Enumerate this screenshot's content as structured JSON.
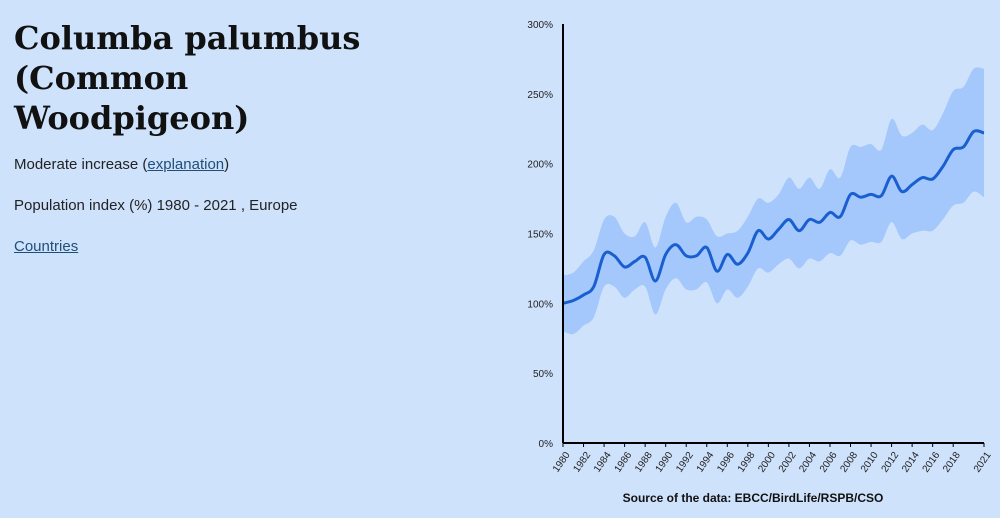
{
  "page": {
    "title_lines": [
      "Columba palumbus",
      "(Common",
      "Woodpigeon)"
    ],
    "trend_prefix": "Moderate increase (",
    "trend_link": "explanation",
    "trend_suffix": ")",
    "subtitle": "Population index (%) 1980 - 2021 , Europe",
    "countries_link": "Countries",
    "source": "Source of the data: EBCC/BirdLife/RSPB/CSO"
  },
  "chart_data": {
    "type": "line",
    "title": "",
    "xlabel": "",
    "ylabel": "",
    "x": [
      1980,
      1981,
      1982,
      1983,
      1984,
      1985,
      1986,
      1987,
      1988,
      1989,
      1990,
      1991,
      1992,
      1993,
      1994,
      1995,
      1996,
      1997,
      1998,
      1999,
      2000,
      2001,
      2002,
      2003,
      2004,
      2005,
      2006,
      2007,
      2008,
      2009,
      2010,
      2011,
      2012,
      2013,
      2014,
      2015,
      2016,
      2017,
      2018,
      2019,
      2020,
      2021
    ],
    "xticks": [
      1980,
      1982,
      1984,
      1986,
      1988,
      1990,
      1992,
      1994,
      1996,
      1998,
      2000,
      2002,
      2004,
      2006,
      2008,
      2010,
      2012,
      2014,
      2016,
      2018,
      2021
    ],
    "yticks": [
      0,
      50,
      100,
      150,
      200,
      250,
      300
    ],
    "ytick_suffix": "%",
    "ylim": [
      0,
      300
    ],
    "series": [
      {
        "values": [
          100,
          102,
          106,
          112,
          135,
          134,
          126,
          130,
          133,
          116,
          135,
          142,
          134,
          134,
          140,
          123,
          135,
          128,
          136,
          152,
          146,
          153,
          160,
          152,
          160,
          158,
          165,
          162,
          178,
          176,
          178,
          177,
          191,
          180,
          185,
          190,
          189,
          198,
          210,
          212,
          223,
          222
        ]
      }
    ],
    "band_upper": [
      120,
      122,
      130,
      138,
      160,
      162,
      150,
      148,
      158,
      140,
      162,
      172,
      158,
      162,
      160,
      148,
      150,
      152,
      162,
      175,
      172,
      178,
      190,
      182,
      190,
      182,
      196,
      190,
      212,
      212,
      214,
      210,
      232,
      220,
      222,
      228,
      224,
      236,
      252,
      255,
      268,
      268
    ],
    "band_lower": [
      80,
      78,
      84,
      90,
      112,
      112,
      104,
      110,
      112,
      92,
      110,
      118,
      110,
      110,
      115,
      100,
      110,
      104,
      112,
      125,
      122,
      128,
      132,
      125,
      132,
      130,
      136,
      134,
      145,
      142,
      144,
      144,
      158,
      146,
      150,
      152,
      152,
      160,
      170,
      172,
      180,
      176
    ],
    "colors": {
      "line": "#1a5fd0",
      "band": "#a4c8fb",
      "axis": "#000000"
    },
    "grid": false,
    "legend": "none"
  }
}
